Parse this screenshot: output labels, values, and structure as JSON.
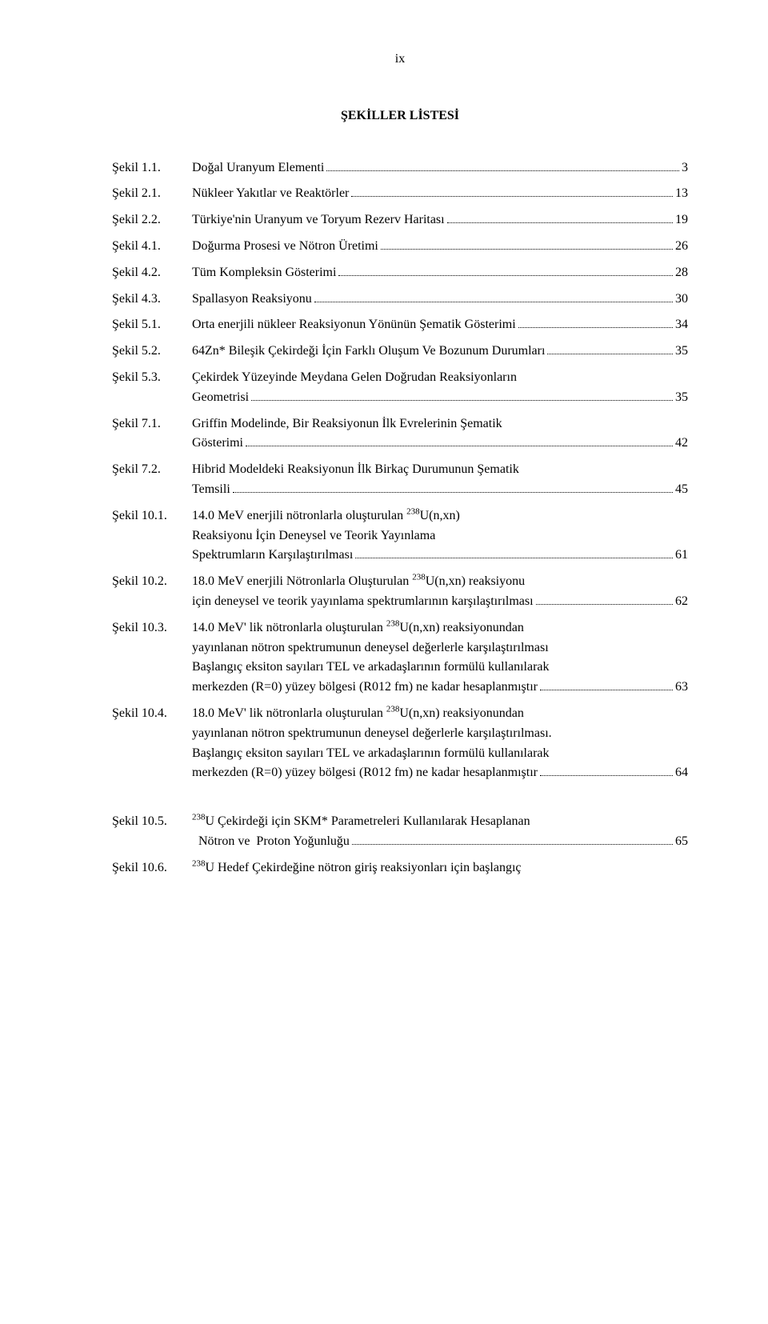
{
  "page_marker": "ix",
  "heading": "ŞEKİLLER LİSTESİ",
  "font": {
    "family": "Times New Roman",
    "body_size_pt": 12,
    "heading_size_pt": 12,
    "color": "#000000"
  },
  "background_color": "#ffffff",
  "entries": [
    {
      "label": "Şekil 1.1.",
      "lines": [
        {
          "text": "Doğal Uranyum Elementi",
          "page": "3"
        }
      ]
    },
    {
      "label": "Şekil 2.1.",
      "lines": [
        {
          "text": "Nükleer Yakıtlar ve Reaktörler",
          "page": "13"
        }
      ]
    },
    {
      "label": "Şekil 2.2.",
      "lines": [
        {
          "text": "Türkiye'nin Uranyum ve Toryum Rezerv Haritası",
          "page": "19"
        }
      ]
    },
    {
      "label": "Şekil 4.1.",
      "lines": [
        {
          "text": "Doğurma Prosesi ve Nötron Üretimi",
          "page": "26"
        }
      ]
    },
    {
      "label": "Şekil 4.2.",
      "lines": [
        {
          "text": "Tüm Kompleksin Gösterimi",
          "page": "28"
        }
      ]
    },
    {
      "label": "Şekil 4.3.",
      "lines": [
        {
          "text": "Spallasyon Reaksiyonu",
          "page": "30"
        }
      ]
    },
    {
      "label": "Şekil 5.1.",
      "lines": [
        {
          "text": "Orta enerjili nükleer Reaksiyonun Yönünün Şematik Gösterimi",
          "page": "34"
        }
      ]
    },
    {
      "label": "Şekil 5.2.",
      "lines": [
        {
          "text": "64Zn* Bileşik Çekirdeği İçin Farklı Oluşum Ve Bozunum Durumları",
          "page": "35"
        }
      ]
    },
    {
      "label": "Şekil 5.3.",
      "lines": [
        {
          "text": "Çekirdek Yüzeyinde Meydana Gelen Doğrudan Reaksiyonların"
        },
        {
          "text": "Geometrisi",
          "page": "35"
        }
      ]
    },
    {
      "label": "Şekil 7.1.",
      "lines": [
        {
          "text": "Griffin Modelinde, Bir Reaksiyonun İlk Evrelerinin Şematik"
        },
        {
          "text": "Gösterimi",
          "page": "42"
        }
      ]
    },
    {
      "label": "Şekil 7.2.",
      "lines": [
        {
          "text": "Hibrid Modeldeki Reaksiyonun İlk Birkaç Durumunun Şematik"
        },
        {
          "text": "Temsili",
          "page": "45"
        }
      ]
    },
    {
      "label": "Şekil 10.1.",
      "lines": [
        {
          "text": "14.0 MeV enerjili nötronlarla oluşturulan <sup>238</sup>U(n,xn)"
        },
        {
          "text": "Reaksiyonu İçin Deneysel ve Teorik Yayınlama"
        },
        {
          "text": "Spektrumların Karşılaştırılması",
          "page": "61"
        }
      ]
    },
    {
      "label": "Şekil 10.2.",
      "lines": [
        {
          "text": "18.0 MeV enerjili Nötronlarla Oluşturulan <sup>238</sup>U(n,xn) reaksiyonu"
        },
        {
          "text": "için deneysel ve teorik yayınlama spektrumlarının karşılaştırılması",
          "page": "62"
        }
      ]
    },
    {
      "label": "Şekil 10.3.",
      "lines": [
        {
          "text": "14.0 MeV' lik nötronlarla oluşturulan <sup>238</sup>U(n,xn) reaksiyonundan"
        },
        {
          "text": "yayınlanan nötron spektrumunun deneysel değerlerle karşılaştırılması"
        },
        {
          "text": "Başlangıç eksiton sayıları TEL ve arkadaşlarının formülü kullanılarak"
        },
        {
          "text": "merkezden (R=0) yüzey bölgesi (R012 fm) ne kadar hesaplanmıştır",
          "page": "63"
        }
      ]
    },
    {
      "label": "Şekil 10.4.",
      "lines": [
        {
          "text": "18.0 MeV' lik nötronlarla oluşturulan <sup>238</sup>U(n,xn) reaksiyonundan"
        },
        {
          "text": "yayınlanan nötron spektrumunun deneysel değerlerle karşılaştırılması."
        },
        {
          "text": "Başlangıç eksiton sayıları TEL ve arkadaşlarının formülü kullanılarak"
        },
        {
          "text": "merkezden (R=0) yüzey bölgesi (R012 fm) ne kadar hesaplanmıştır",
          "page": "64"
        }
      ]
    },
    {
      "gap": true
    },
    {
      "label": "Şekil 10.5.",
      "lines": [
        {
          "text": "<sup>238</sup>U Çekirdeği için SKM* Parametreleri Kullanılarak Hesaplanan"
        },
        {
          "text": "Nötron ve  Proton Yoğunluğu",
          "page": "65",
          "extra_indent": true
        }
      ]
    },
    {
      "label": "Şekil 10.6.",
      "lines": [
        {
          "text": "<sup>238</sup>U Hedef Çekirdeğine nötron giriş reaksiyonları için başlangıç"
        }
      ]
    }
  ]
}
